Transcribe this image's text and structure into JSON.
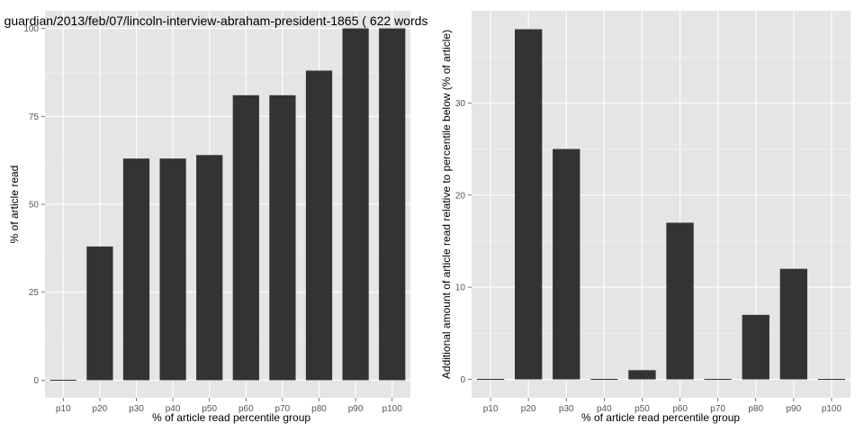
{
  "chart_data": [
    {
      "type": "bar",
      "title": "guardian/2013/feb/07/lincoln-interview-abraham-president-1865 ( 622 words",
      "xlabel": "% of article read percentile group",
      "ylabel": "% of article read",
      "categories": [
        "p10",
        "p20",
        "p30",
        "p40",
        "p50",
        "p60",
        "p70",
        "p80",
        "p90",
        "p100"
      ],
      "values": [
        0,
        38,
        63,
        63,
        64,
        81,
        81,
        88,
        100,
        100
      ],
      "ylim": [
        -5,
        105
      ],
      "yticks": [
        0,
        25,
        50,
        75,
        100
      ],
      "grid": true,
      "colors": {
        "bar": "#333333",
        "panel": "#e5e5e5",
        "grid": "#ffffff"
      }
    },
    {
      "type": "bar",
      "title": "",
      "xlabel": "% of article read percentile group",
      "ylabel": "Additional amount of article read relative to percentile below (% of article)",
      "categories": [
        "p10",
        "p20",
        "p30",
        "p40",
        "p50",
        "p60",
        "p70",
        "p80",
        "p90",
        "p100"
      ],
      "values": [
        0,
        38,
        25,
        0,
        1,
        17,
        0,
        7,
        12,
        0
      ],
      "ylim": [
        -2,
        40
      ],
      "yticks": [
        0,
        10,
        20,
        30
      ],
      "grid": true,
      "colors": {
        "bar": "#333333",
        "panel": "#e5e5e5",
        "grid": "#ffffff"
      }
    }
  ]
}
